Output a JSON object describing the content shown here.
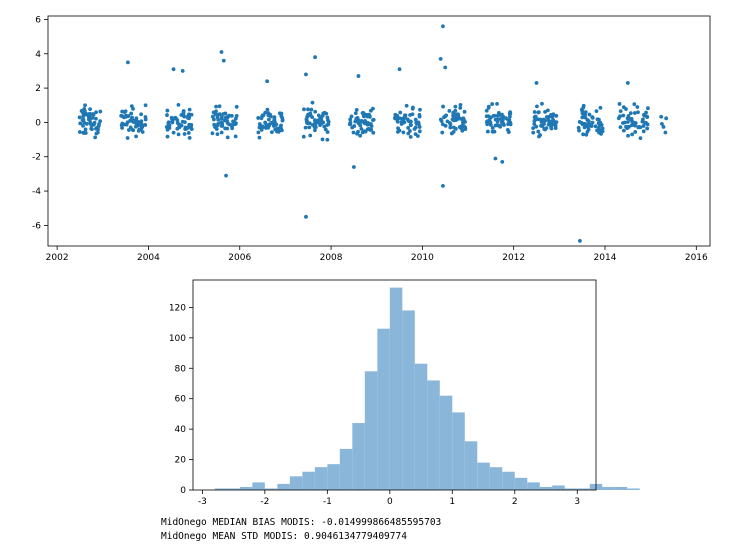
{
  "chart_data": [
    {
      "type": "scatter",
      "title": "",
      "xlabel": "",
      "ylabel": "",
      "xlim": [
        2001.8,
        2016.3
      ],
      "ylim": [
        -7.2,
        6.2
      ],
      "x_ticks": [
        "2002",
        "2004",
        "2006",
        "2008",
        "2010",
        "2012",
        "2014",
        "2016"
      ],
      "y_ticks": [
        "6",
        "4",
        "2",
        "0",
        "-2",
        "-4",
        "-6"
      ],
      "color": "#1f77b4",
      "clusters": [
        {
          "x_start": 2002.45,
          "x_end": 2002.95
        },
        {
          "x_start": 2003.4,
          "x_end": 2003.95
        },
        {
          "x_start": 2004.4,
          "x_end": 2004.95
        },
        {
          "x_start": 2005.4,
          "x_end": 2005.95
        },
        {
          "x_start": 2006.4,
          "x_end": 2006.95
        },
        {
          "x_start": 2007.4,
          "x_end": 2007.95
        },
        {
          "x_start": 2008.4,
          "x_end": 2008.95
        },
        {
          "x_start": 2009.4,
          "x_end": 2009.95
        },
        {
          "x_start": 2010.4,
          "x_end": 2010.95
        },
        {
          "x_start": 2011.4,
          "x_end": 2011.95
        },
        {
          "x_start": 2012.4,
          "x_end": 2012.95
        },
        {
          "x_start": 2013.4,
          "x_end": 2013.95
        },
        {
          "x_start": 2014.3,
          "x_end": 2014.95
        },
        {
          "x_start": 2015.2,
          "x_end": 2015.35
        }
      ],
      "outliers": [
        {
          "x": 2003.55,
          "y": 3.5
        },
        {
          "x": 2004.55,
          "y": 3.1
        },
        {
          "x": 2004.75,
          "y": 3.0
        },
        {
          "x": 2005.6,
          "y": 4.1
        },
        {
          "x": 2005.65,
          "y": 3.6
        },
        {
          "x": 2005.7,
          "y": -3.1
        },
        {
          "x": 2006.6,
          "y": 2.4
        },
        {
          "x": 2007.45,
          "y": 2.8
        },
        {
          "x": 2007.65,
          "y": 3.8
        },
        {
          "x": 2007.45,
          "y": -5.5
        },
        {
          "x": 2008.5,
          "y": -2.6
        },
        {
          "x": 2008.6,
          "y": 2.7
        },
        {
          "x": 2009.5,
          "y": 3.1
        },
        {
          "x": 2010.45,
          "y": 5.6
        },
        {
          "x": 2010.4,
          "y": 3.7
        },
        {
          "x": 2010.5,
          "y": 3.2
        },
        {
          "x": 2010.45,
          "y": -3.7
        },
        {
          "x": 2011.6,
          "y": -2.1
        },
        {
          "x": 2011.75,
          "y": -2.3
        },
        {
          "x": 2012.5,
          "y": 2.3
        },
        {
          "x": 2013.45,
          "y": -6.9
        },
        {
          "x": 2014.5,
          "y": 2.3
        }
      ]
    },
    {
      "type": "bar",
      "title": "",
      "xlabel": "",
      "ylabel": "",
      "xlim": [
        -3.15,
        3.3
      ],
      "ylim": [
        0,
        138
      ],
      "x_ticks": [
        "-3",
        "-2",
        "-1",
        "0",
        "1",
        "2",
        "3"
      ],
      "y_ticks": [
        "0",
        "20",
        "40",
        "60",
        "80",
        "100",
        "120"
      ],
      "color": "#8ab6da",
      "bin_start": -3.0,
      "bin_width": 0.2,
      "values": [
        0,
        1,
        1,
        2,
        5,
        1,
        4,
        9,
        12,
        15,
        17,
        27,
        44,
        78,
        106,
        133,
        118,
        83,
        72,
        62,
        51,
        32,
        18,
        15,
        12,
        8,
        5,
        2,
        3,
        1,
        1,
        4,
        2,
        2,
        1
      ]
    }
  ],
  "stats": {
    "line1": "MidOnego MEDIAN BIAS MODIS: -0.014999866485595703",
    "line2": "MidOnego MEAN STD MODIS: 0.9046134779409774"
  }
}
